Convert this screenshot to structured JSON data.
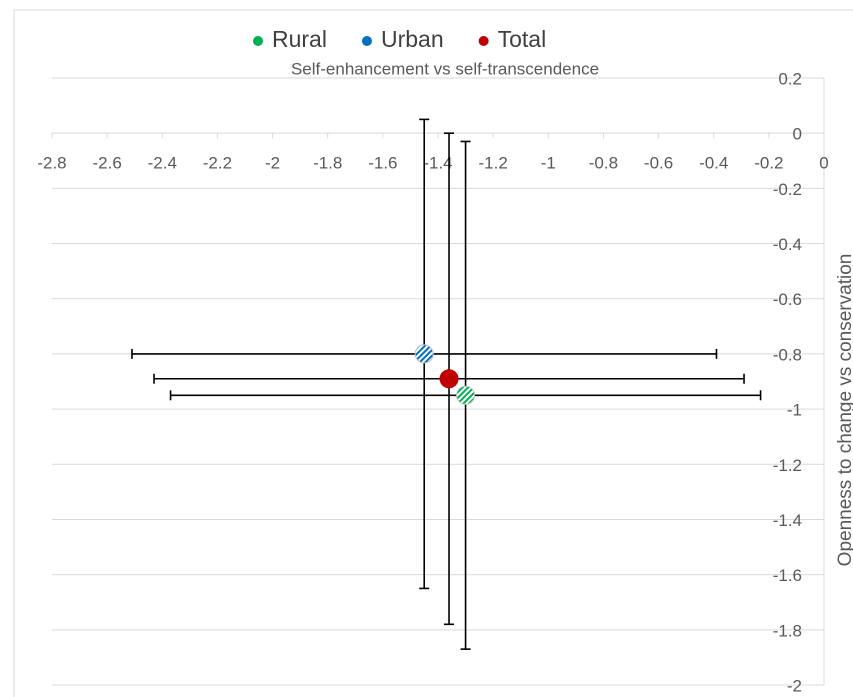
{
  "chart_data": {
    "type": "scatter",
    "x_label": "Self-enhancement vs self-transcendence",
    "y_label": "Openness to change vs conservation",
    "legend": "top",
    "grid": true,
    "xlim": [
      -2.8,
      0
    ],
    "xticks": [
      -2.8,
      -2.6,
      -2.4,
      -2.2,
      -2,
      -1.8,
      -1.6,
      -1.4,
      -1.2,
      -1,
      -0.8,
      -0.6,
      -0.4,
      -0.2,
      0
    ],
    "ylim": [
      -2,
      0.2
    ],
    "yticks": [
      0.2,
      0,
      -0.2,
      -0.4,
      -0.6,
      -0.8,
      -1,
      -1.2,
      -1.4,
      -1.6,
      -1.8,
      -2
    ],
    "series": [
      {
        "name": "Rural",
        "color": "#00b050",
        "x": [
          -1.3
        ],
        "values": [
          -0.95
        ],
        "x_error": [
          1.07
        ],
        "y_error": [
          0.92
        ]
      },
      {
        "name": "Urban",
        "color": "#0070c0",
        "x": [
          -1.45
        ],
        "values": [
          -0.8
        ],
        "x_error": [
          1.06
        ],
        "y_error": [
          0.85
        ]
      },
      {
        "name": "Total",
        "color": "#c00000",
        "x": [
          -1.36
        ],
        "values": [
          -0.89
        ],
        "x_error": [
          1.07
        ],
        "y_error": [
          0.89
        ]
      }
    ]
  }
}
